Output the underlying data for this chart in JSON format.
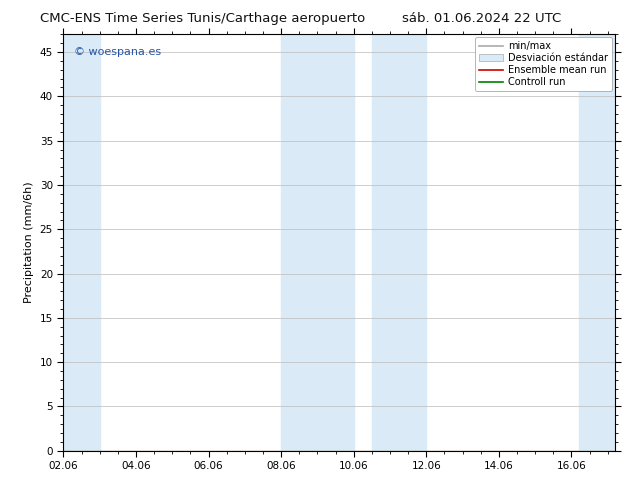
{
  "title_left": "CMC-ENS Time Series Tunis/Carthage aeropuerto",
  "title_right": "sáb. 01.06.2024 22 UTC",
  "ylabel": "Precipitation (mm/6h)",
  "watermark": "© woespana.es",
  "ylim": [
    0,
    47
  ],
  "yticks": [
    0,
    5,
    10,
    15,
    20,
    25,
    30,
    35,
    40,
    45
  ],
  "xtick_labels": [
    "02.06",
    "04.06",
    "06.06",
    "08.06",
    "10.06",
    "12.06",
    "14.06",
    "16.06"
  ],
  "xtick_positions": [
    0,
    2,
    4,
    6,
    8,
    10,
    12,
    14
  ],
  "xlim": [
    0,
    15.2
  ],
  "shaded_bands": [
    {
      "xstart": 0.0,
      "xend": 1.0,
      "color": "#daeaf7"
    },
    {
      "xstart": 6.0,
      "xend": 8.0,
      "color": "#daeaf7"
    },
    {
      "xstart": 8.5,
      "xend": 10.0,
      "color": "#daeaf7"
    },
    {
      "xstart": 14.2,
      "xend": 15.2,
      "color": "#daeaf7"
    }
  ],
  "legend_entries": [
    {
      "label": "min/max",
      "color": "#aaaaaa",
      "lw": 1.2,
      "style": "line"
    },
    {
      "label": "Desviación estándar",
      "color": "#daeaf7",
      "lw": 8,
      "style": "band"
    },
    {
      "label": "Ensemble mean run",
      "color": "#cc0000",
      "lw": 1.2,
      "style": "line"
    },
    {
      "label": "Controll run",
      "color": "#008000",
      "lw": 1.2,
      "style": "line"
    }
  ],
  "bg_color": "#ffffff",
  "plot_bg_color": "#ffffff",
  "grid_color": "#bbbbbb",
  "spine_color": "#000000",
  "title_fontsize": 9.5,
  "label_fontsize": 8,
  "tick_fontsize": 7.5,
  "legend_fontsize": 7,
  "watermark_color": "#2255aa",
  "watermark_fontsize": 8
}
